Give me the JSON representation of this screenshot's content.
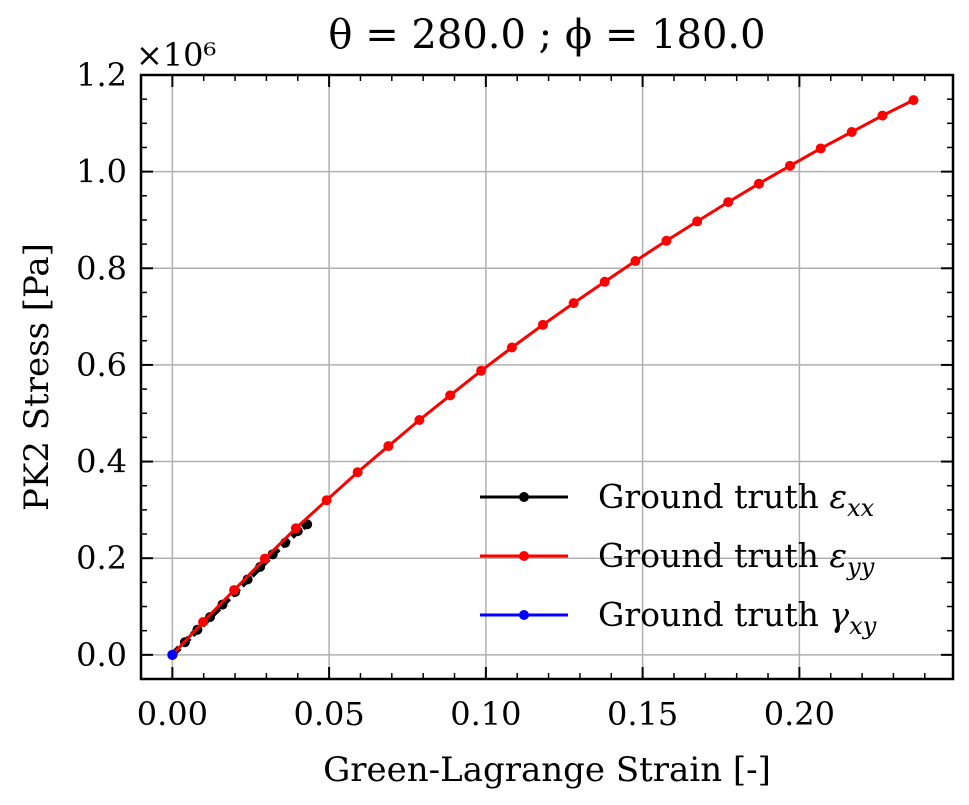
{
  "chart_data": {
    "type": "line",
    "title": "θ = 280.0 ; ϕ = 180.0",
    "xlabel": "Green-Lagrange Strain [-]",
    "ylabel": "PK2 Stress [Pa]",
    "y_multiplier_label": "×10⁶",
    "xlim": [
      -0.01,
      0.249
    ],
    "ylim": [
      -0.05,
      1.2
    ],
    "x_ticks": [
      0.0,
      0.05,
      0.1,
      0.15,
      0.2
    ],
    "x_tick_labels": [
      "0.00",
      "0.05",
      "0.10",
      "0.15",
      "0.20"
    ],
    "y_ticks": [
      0.0,
      0.2,
      0.4,
      0.6,
      0.8,
      1.0,
      1.2
    ],
    "y_tick_labels": [
      "0.0",
      "0.2",
      "0.4",
      "0.6",
      "0.8",
      "1.0",
      "1.2"
    ],
    "grid": true,
    "legend_position": "bottom-right",
    "series": [
      {
        "name": "Ground truth εxx",
        "legend_main": "Ground truth ",
        "legend_symbol": "ε",
        "legend_sub": "xx",
        "color": "#000000",
        "dashed": true,
        "x": [
          0.0,
          0.004,
          0.008,
          0.012,
          0.016,
          0.02,
          0.024,
          0.028,
          0.032,
          0.036,
          0.04,
          0.043
        ],
        "y": [
          0.0,
          0.026,
          0.052,
          0.078,
          0.104,
          0.13,
          0.156,
          0.182,
          0.208,
          0.232,
          0.256,
          0.27
        ]
      },
      {
        "name": "Ground truth εyy",
        "legend_main": "Ground truth ",
        "legend_symbol": "ε",
        "legend_sub": "yy",
        "color": "#ff0000",
        "dashed": false,
        "x": [
          0.0,
          0.0098,
          0.0197,
          0.0295,
          0.0394,
          0.0492,
          0.0591,
          0.0689,
          0.0788,
          0.0886,
          0.0985,
          0.1083,
          0.1182,
          0.128,
          0.1379,
          0.1477,
          0.1576,
          0.1674,
          0.1773,
          0.1871,
          0.197,
          0.2068,
          0.2167,
          0.2265,
          0.2364
        ],
        "y": [
          0.0,
          0.068,
          0.134,
          0.199,
          0.262,
          0.32,
          0.378,
          0.432,
          0.486,
          0.537,
          0.588,
          0.636,
          0.683,
          0.728,
          0.772,
          0.815,
          0.857,
          0.897,
          0.937,
          0.975,
          1.012,
          1.048,
          1.082,
          1.116,
          1.148
        ]
      },
      {
        "name": "Ground truth γxy",
        "legend_main": "Ground truth ",
        "legend_symbol": "γ",
        "legend_sub": "xy",
        "color": "#0000ff",
        "dashed": false,
        "x": [
          0.0
        ],
        "y": [
          0.0
        ]
      }
    ]
  }
}
